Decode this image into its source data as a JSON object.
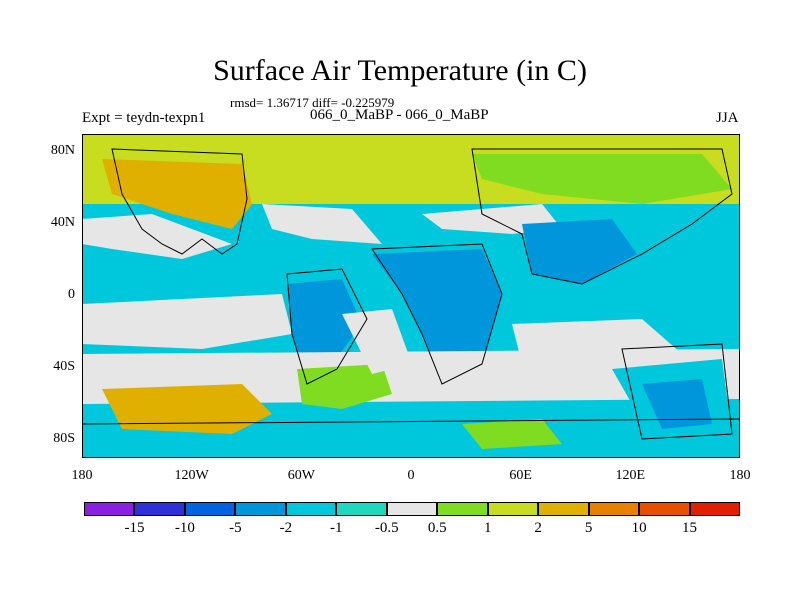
{
  "header": {
    "title": "Surface Air Temperature (in C)",
    "stats": "rmsd= 1.36717  diff= -0.225979",
    "experiment": "Expt = teydn-texpn1",
    "subtitle": "066_0_MaBP - 066_0_MaBP",
    "season": "JJA"
  },
  "map": {
    "lat_labels": [
      "80N",
      "40N",
      "0",
      "40S",
      "80S"
    ],
    "lat_values": [
      80,
      40,
      0,
      -40,
      -80
    ],
    "lon_labels": [
      "180",
      "120W",
      "60W",
      "0",
      "60E",
      "120E",
      "180"
    ],
    "lon_values": [
      -180,
      -120,
      -60,
      0,
      60,
      120,
      180
    ],
    "lat_range": [
      -90,
      90
    ],
    "lon_range": [
      -180,
      180
    ],
    "field_categories": {
      "ocean": "#00c8dc",
      "land": "#0096dc",
      "neutral": "#e6e6e6",
      "warm": "#80dc20",
      "warmer": "#c8dc20",
      "hot": "#e0b000"
    }
  },
  "colorbar": {
    "labels": [
      "-15",
      "-10",
      "-5",
      "-2",
      "-1",
      "-0.5",
      "0.5",
      "1",
      "2",
      "5",
      "10",
      "15"
    ],
    "colors": [
      "#8a20e0",
      "#3030d8",
      "#0064e0",
      "#0096dc",
      "#00c8dc",
      "#20d8c0",
      "#e6e6e6",
      "#80dc20",
      "#c8dc20",
      "#e0b000",
      "#e88000",
      "#e85000",
      "#e02000"
    ]
  }
}
